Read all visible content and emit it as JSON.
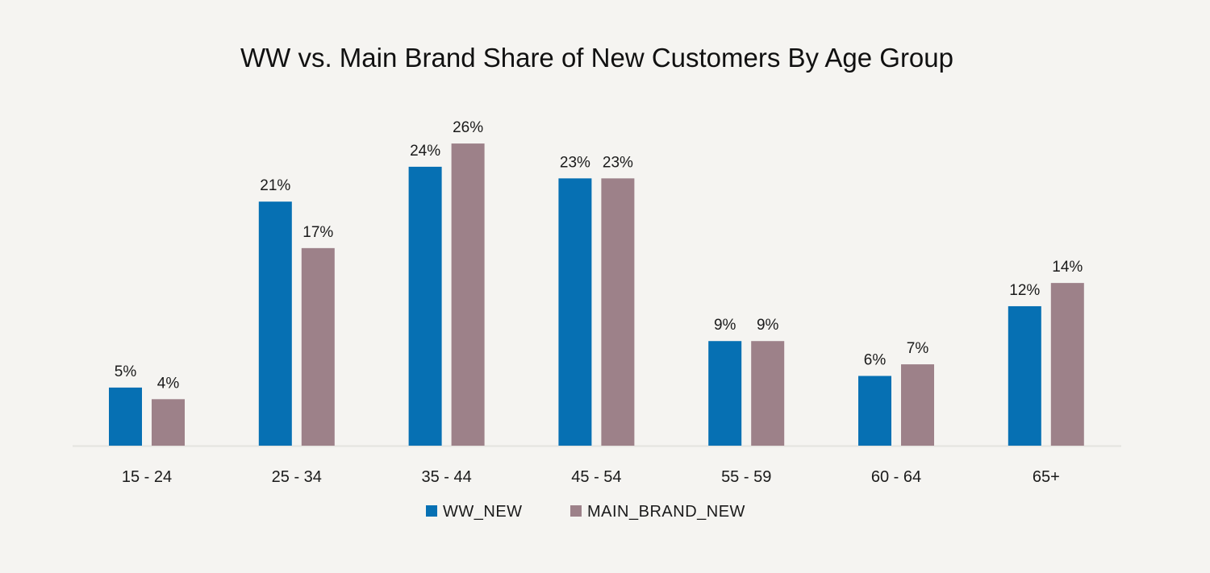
{
  "chart_data": {
    "type": "bar",
    "title": "WW vs. Main Brand Share of New Customers By Age Group",
    "xlabel": "",
    "ylabel": "",
    "categories": [
      "15 - 24",
      "25 - 34",
      "35 - 44",
      "45 - 54",
      "55 - 59",
      "60 - 64",
      "65+"
    ],
    "series": [
      {
        "name": "WW_NEW",
        "color": "#0670b3",
        "values": [
          5,
          21,
          24,
          23,
          9,
          6,
          12
        ]
      },
      {
        "name": "MAIN_BRAND_NEW",
        "color": "#9d8189",
        "values": [
          4,
          17,
          26,
          23,
          9,
          7,
          14
        ]
      }
    ],
    "value_format": "percent",
    "ylim": [
      0,
      26
    ],
    "grid": false,
    "y_axis_visible": false,
    "legend_position": "bottom-center"
  }
}
